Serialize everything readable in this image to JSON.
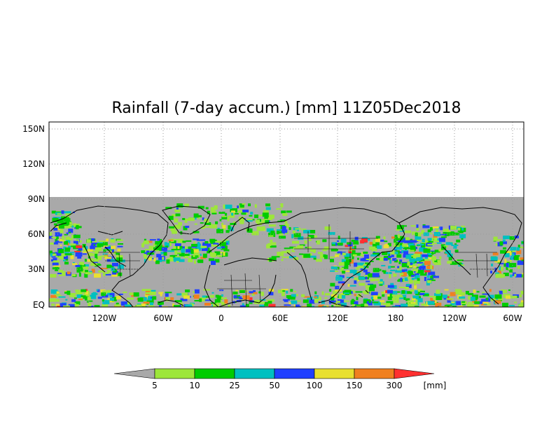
{
  "title": "Rainfall (7-day accum.) [mm] 11Z05Dec2018",
  "map": {
    "lat_labels": [
      "150N",
      "120N",
      "90N",
      "60N",
      "30N",
      "EQ"
    ],
    "lon_labels": [
      "120W",
      "60W",
      "0",
      "60E",
      "120E",
      "180",
      "120W",
      "60W"
    ],
    "lat_range": [
      0,
      155
    ],
    "lon_range": [
      -180,
      255
    ],
    "missing_above_lat": 90,
    "missing_color": "#a9a9a9",
    "gridlines": true
  },
  "legend": {
    "unit_label": "[mm]",
    "thresholds": [
      "5",
      "10",
      "25",
      "50",
      "100",
      "150",
      "300"
    ],
    "colors": [
      "#a9a9a9",
      "#9de63a",
      "#00cc00",
      "#00c0c0",
      "#2040ff",
      "#e8e030",
      "#f08020",
      "#ff3030"
    ]
  }
}
